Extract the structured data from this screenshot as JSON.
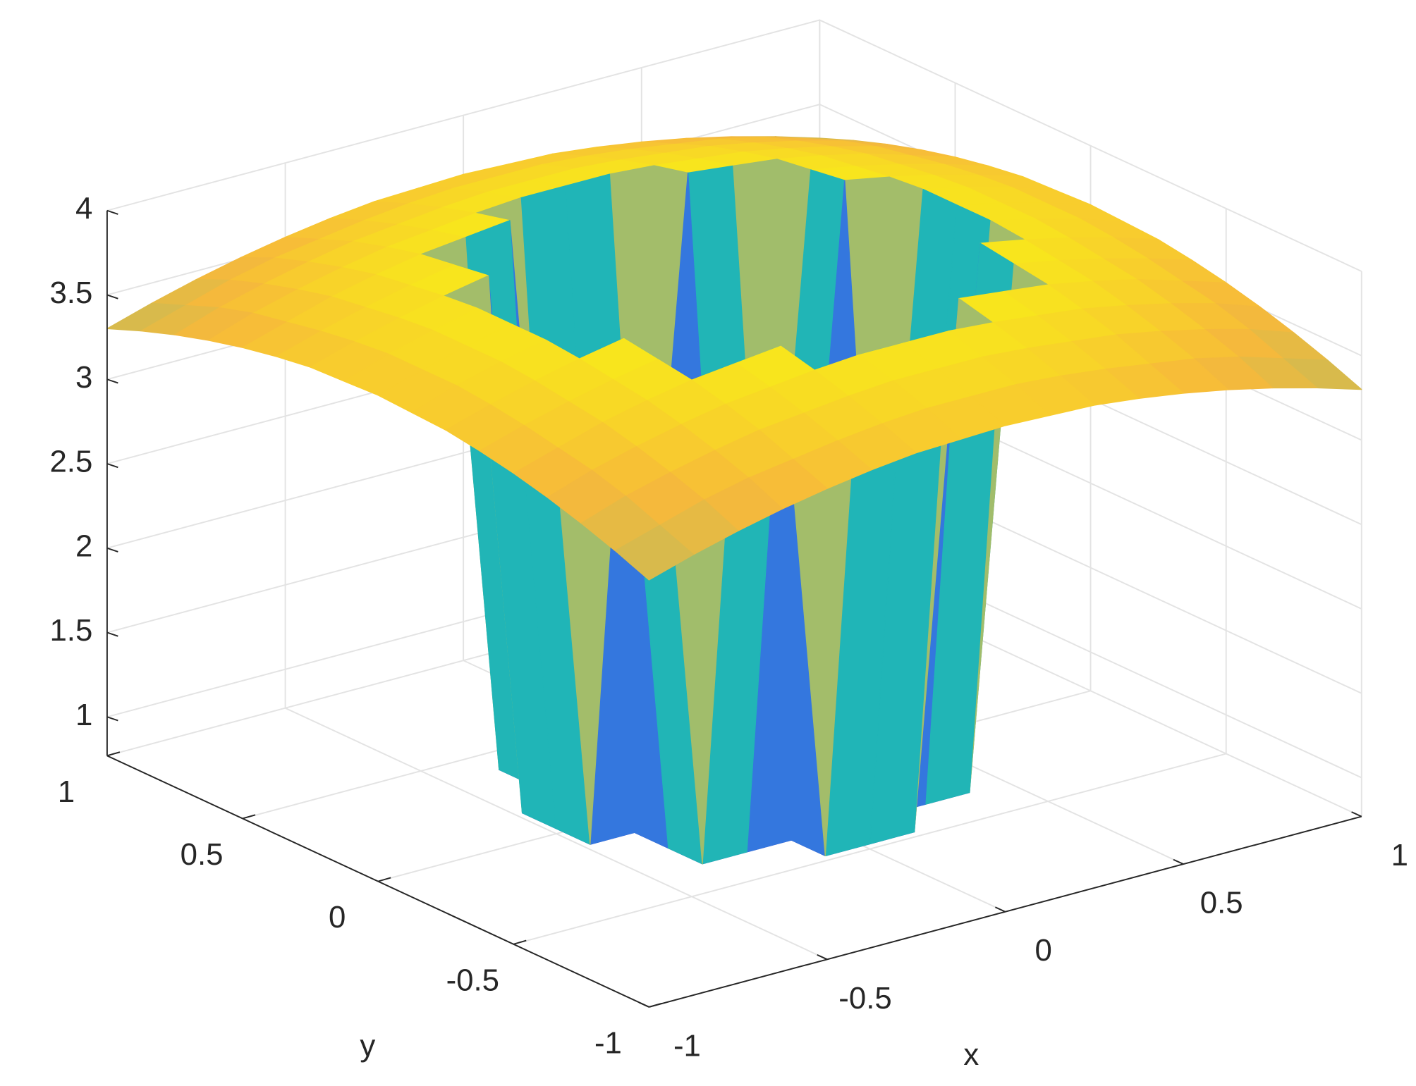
{
  "chart_data": {
    "type": "surface",
    "colormap": "parula",
    "xlabel": "x",
    "ylabel": "y",
    "x": [
      -1,
      -0.875,
      -0.75,
      -0.625,
      -0.5,
      -0.375,
      -0.25,
      -0.125,
      0,
      0.125,
      0.25,
      0.375,
      0.5,
      0.625,
      0.75,
      0.875,
      1
    ],
    "y": [
      -1,
      -0.875,
      -0.75,
      -0.625,
      -0.5,
      -0.375,
      -0.25,
      -0.125,
      0,
      0.125,
      0.25,
      0.375,
      0.5,
      0.625,
      0.75,
      0.875,
      1
    ],
    "z": [
      [
        3.3,
        3.38,
        3.45,
        3.51,
        3.56,
        3.6,
        3.63,
        3.64,
        3.65,
        3.64,
        3.63,
        3.6,
        3.56,
        3.51,
        3.45,
        3.38,
        3.3
      ],
      [
        3.38,
        3.46,
        3.54,
        3.6,
        3.64,
        3.68,
        3.71,
        3.73,
        3.73,
        3.73,
        3.71,
        3.68,
        3.64,
        3.6,
        3.54,
        3.46,
        3.38
      ],
      [
        3.45,
        3.54,
        3.61,
        3.67,
        3.72,
        3.75,
        3.78,
        3.8,
        3.8,
        3.8,
        3.78,
        3.75,
        3.72,
        3.67,
        3.61,
        3.54,
        3.45
      ],
      [
        3.51,
        3.6,
        3.67,
        3.73,
        3.78,
        3.81,
        3.84,
        3.86,
        3.86,
        3.86,
        3.84,
        3.81,
        3.78,
        3.73,
        3.67,
        3.6,
        3.51
      ],
      [
        3.56,
        3.64,
        3.72,
        3.78,
        3.83,
        3.86,
        3.89,
        0.8,
        0.8,
        0.8,
        3.89,
        3.86,
        3.83,
        3.78,
        3.72,
        3.64,
        3.56
      ],
      [
        3.6,
        3.68,
        3.75,
        3.81,
        3.86,
        0.8,
        0.8,
        0.8,
        0.8,
        0.8,
        0.8,
        0.8,
        3.86,
        3.81,
        3.75,
        3.68,
        3.6
      ],
      [
        3.63,
        3.71,
        3.78,
        3.84,
        3.89,
        0.8,
        0.8,
        0.8,
        0.8,
        0.8,
        0.8,
        0.8,
        3.89,
        3.84,
        3.78,
        3.71,
        3.63
      ],
      [
        3.64,
        3.73,
        3.8,
        3.86,
        0.8,
        0.8,
        0.8,
        0.8,
        0.8,
        0.8,
        0.8,
        0.8,
        0.8,
        3.86,
        3.8,
        3.73,
        3.64
      ],
      [
        3.65,
        3.73,
        3.8,
        3.86,
        0.8,
        0.8,
        0.8,
        0.8,
        0.8,
        0.8,
        0.8,
        0.8,
        0.8,
        3.86,
        3.8,
        3.73,
        3.65
      ],
      [
        3.64,
        3.73,
        3.8,
        3.86,
        0.8,
        0.8,
        0.8,
        0.8,
        0.8,
        0.8,
        0.8,
        0.8,
        0.8,
        3.86,
        3.8,
        3.73,
        3.64
      ],
      [
        3.63,
        3.71,
        3.78,
        3.84,
        3.89,
        0.8,
        0.8,
        0.8,
        0.8,
        0.8,
        0.8,
        0.8,
        3.89,
        3.84,
        3.78,
        3.71,
        3.63
      ],
      [
        3.6,
        3.68,
        3.75,
        3.81,
        3.86,
        0.8,
        0.8,
        0.8,
        0.8,
        0.8,
        0.8,
        0.8,
        3.86,
        3.81,
        3.75,
        3.68,
        3.6
      ],
      [
        3.56,
        3.64,
        3.72,
        3.78,
        3.83,
        3.86,
        3.89,
        0.8,
        0.8,
        0.8,
        3.89,
        3.86,
        3.83,
        3.78,
        3.72,
        3.64,
        3.56
      ],
      [
        3.51,
        3.6,
        3.67,
        3.73,
        3.78,
        3.81,
        3.84,
        3.86,
        3.86,
        3.86,
        3.84,
        3.81,
        3.78,
        3.73,
        3.67,
        3.6,
        3.51
      ],
      [
        3.45,
        3.54,
        3.61,
        3.67,
        3.72,
        3.75,
        3.78,
        3.8,
        3.8,
        3.8,
        3.78,
        3.75,
        3.72,
        3.67,
        3.61,
        3.54,
        3.45
      ],
      [
        3.38,
        3.46,
        3.54,
        3.6,
        3.64,
        3.68,
        3.71,
        3.73,
        3.73,
        3.73,
        3.71,
        3.68,
        3.64,
        3.6,
        3.54,
        3.46,
        3.38
      ],
      [
        3.3,
        3.38,
        3.45,
        3.51,
        3.56,
        3.6,
        3.63,
        3.64,
        3.65,
        3.64,
        3.63,
        3.6,
        3.56,
        3.51,
        3.45,
        3.38,
        3.3
      ]
    ],
    "xlim": [
      -1,
      1
    ],
    "ylim": [
      -1,
      1
    ],
    "zlim": [
      0.77,
      4
    ],
    "xticks": [
      -1,
      -0.5,
      0,
      0.5,
      1
    ],
    "yticks": [
      -1,
      -0.5,
      0,
      0.5,
      1
    ],
    "zticks": [
      1,
      1.5,
      2,
      2.5,
      3,
      3.5,
      4
    ],
    "grid": true
  }
}
